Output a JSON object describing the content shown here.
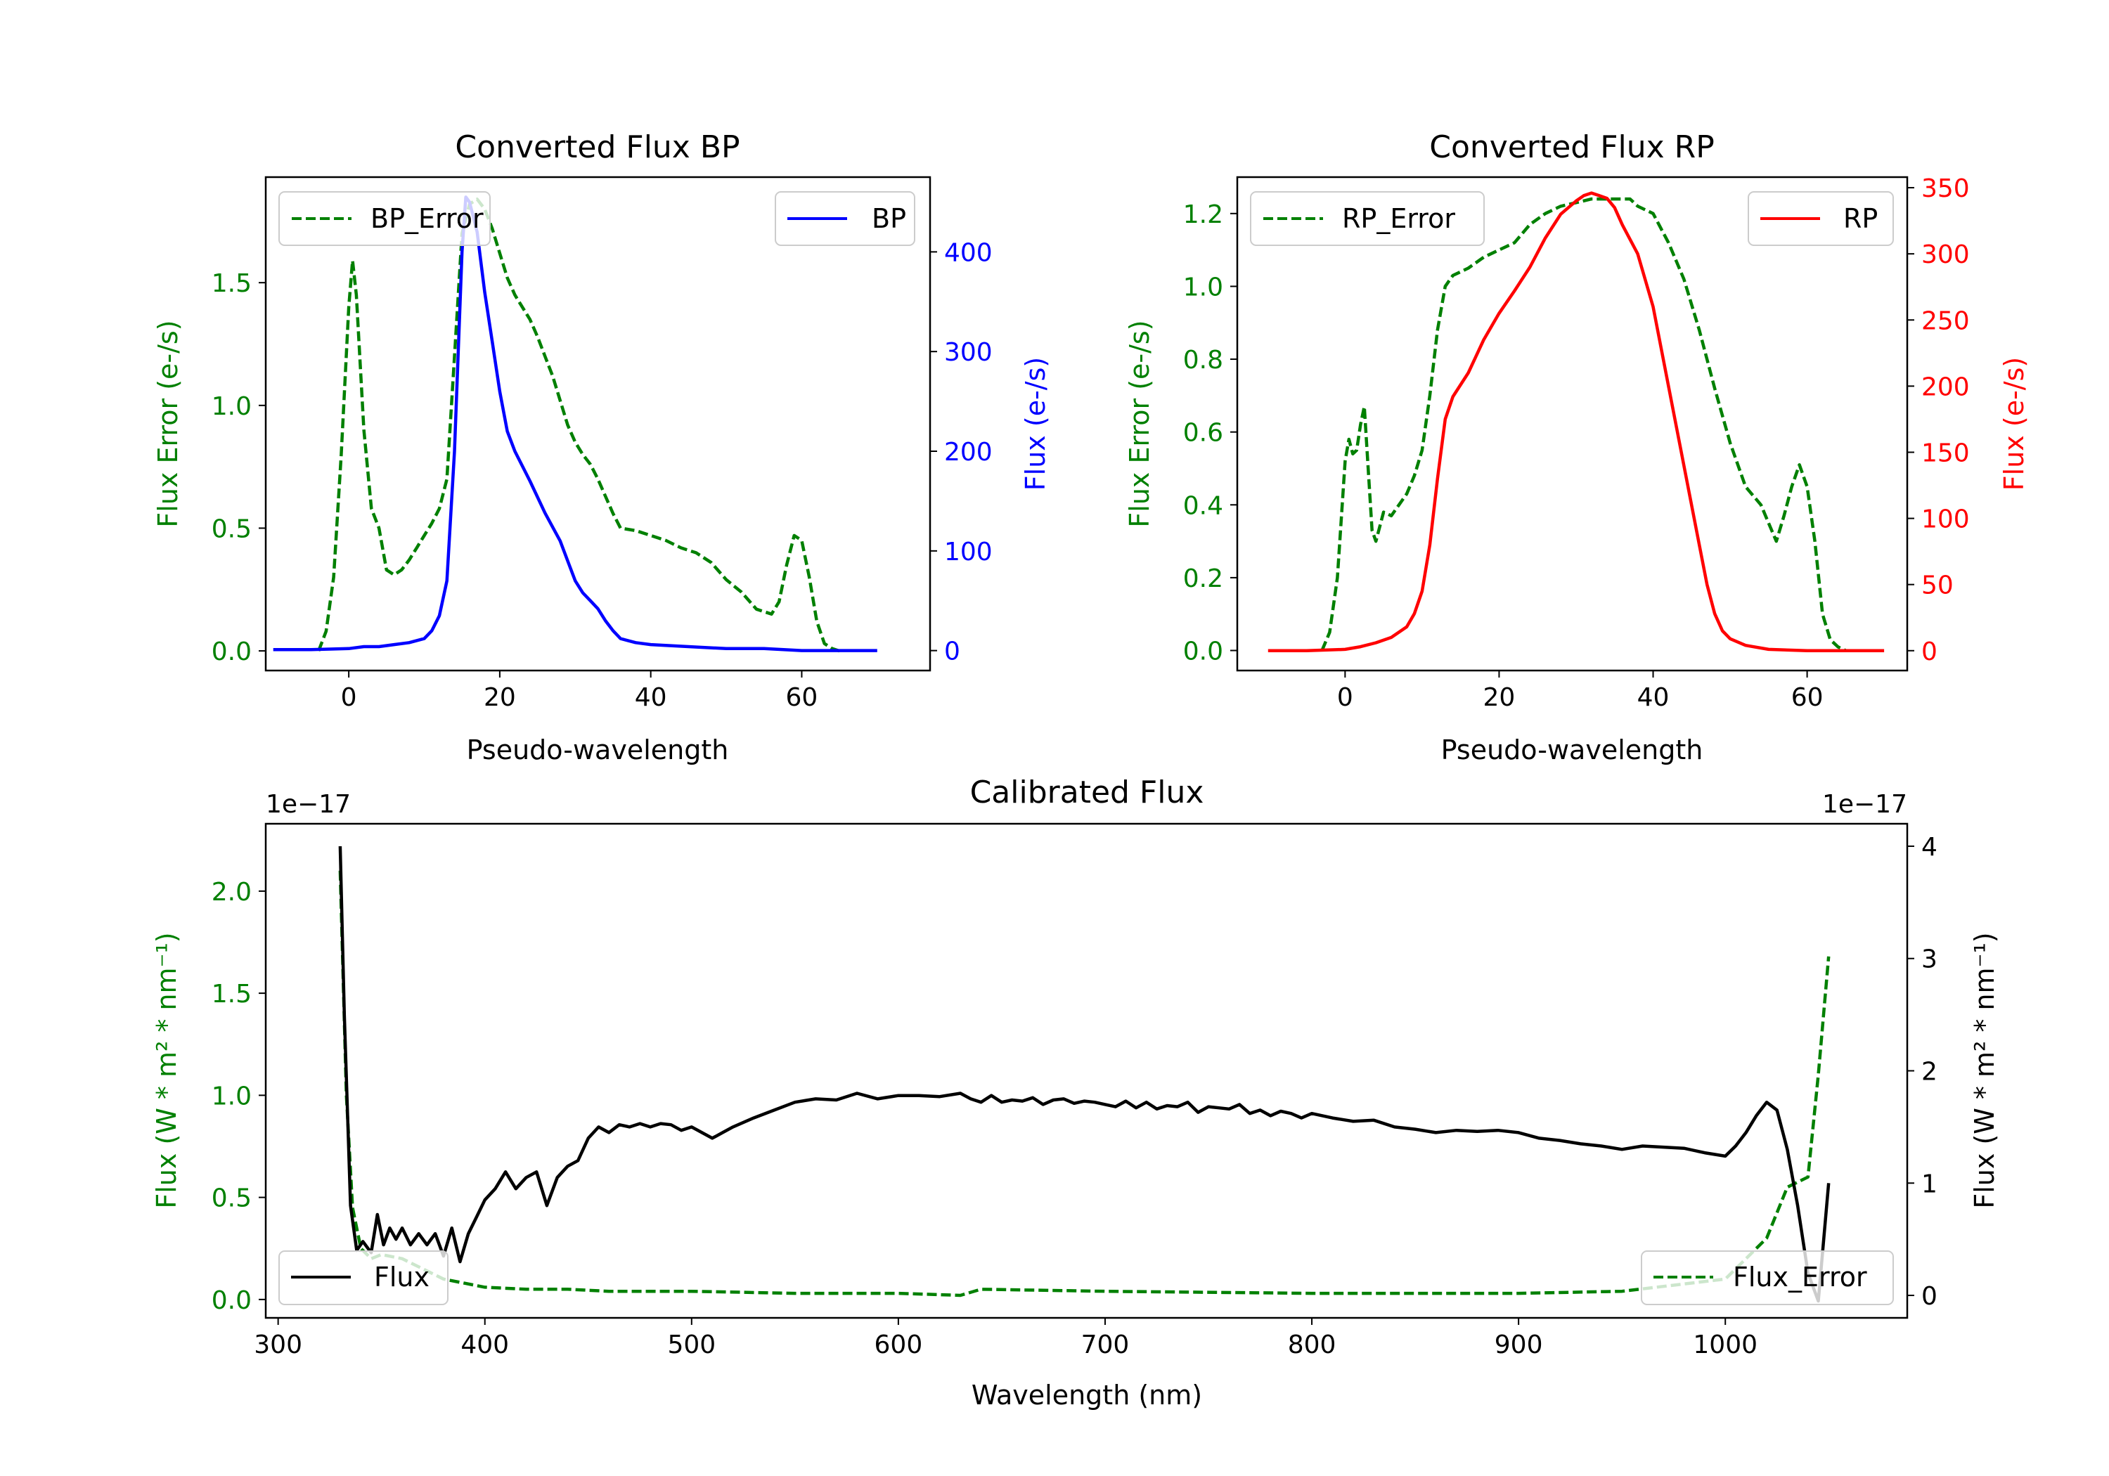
{
  "chart_data": [
    {
      "type": "line",
      "title": "Converted Flux BP",
      "xlabel": "Pseudo-wavelength",
      "ylabel_left": "Flux Error (e-/s)",
      "ylabel_right": "Flux (e-/s)",
      "xlim": [
        -11,
        77
      ],
      "ylim_left": [
        -0.08,
        1.93
      ],
      "ylim_right": [
        -20,
        475
      ],
      "xticks": [
        "0",
        "20",
        "40",
        "60"
      ],
      "yticks_left": [
        "0.0",
        "0.5",
        "1.0",
        "1.5"
      ],
      "yticks_right": [
        "0",
        "100",
        "200",
        "300",
        "400"
      ],
      "left_color": "#008000",
      "right_color": "#0000ff",
      "legend_left": "upper-left",
      "legend_right": "upper-right",
      "series": [
        {
          "name": "BP_Error",
          "axis": "left",
          "style": "dashed",
          "color": "#008000",
          "x": [
            -4,
            -3,
            -2,
            -1,
            0,
            0.5,
            1,
            2,
            3,
            4,
            5,
            6,
            7,
            8,
            9,
            10,
            11,
            12,
            13,
            14,
            15,
            16,
            17,
            18,
            19,
            20,
            21,
            22,
            23,
            24,
            25,
            26,
            27,
            28,
            29,
            30,
            31,
            32,
            33,
            34,
            35,
            36,
            38,
            40,
            42,
            44,
            46,
            48,
            50,
            52,
            54,
            56,
            57,
            58,
            59,
            60,
            61,
            62,
            63,
            64,
            65
          ],
          "y": [
            0.0,
            0.08,
            0.3,
            0.8,
            1.4,
            1.59,
            1.45,
            0.9,
            0.58,
            0.5,
            0.33,
            0.31,
            0.33,
            0.37,
            0.42,
            0.47,
            0.52,
            0.58,
            0.7,
            1.2,
            1.7,
            1.82,
            1.84,
            1.8,
            1.72,
            1.62,
            1.52,
            1.45,
            1.4,
            1.35,
            1.28,
            1.2,
            1.12,
            1.02,
            0.92,
            0.85,
            0.8,
            0.76,
            0.7,
            0.63,
            0.56,
            0.5,
            0.49,
            0.47,
            0.45,
            0.42,
            0.4,
            0.36,
            0.29,
            0.24,
            0.17,
            0.15,
            0.2,
            0.35,
            0.47,
            0.45,
            0.3,
            0.12,
            0.03,
            0.01,
            0.0
          ]
        },
        {
          "name": "BP",
          "axis": "right",
          "style": "solid",
          "color": "#0000ff",
          "x": [
            -10,
            -5,
            0,
            2,
            4,
            6,
            8,
            10,
            11,
            12,
            13,
            14,
            15,
            15.5,
            16,
            17,
            18,
            19,
            20,
            21,
            22,
            24,
            26,
            28,
            29,
            30,
            31,
            32,
            33,
            34,
            35,
            36,
            38,
            40,
            45,
            50,
            55,
            60,
            65,
            70
          ],
          "y": [
            1,
            1,
            2,
            4,
            4,
            6,
            8,
            12,
            20,
            35,
            70,
            200,
            400,
            455,
            450,
            420,
            360,
            310,
            260,
            220,
            200,
            170,
            138,
            110,
            90,
            70,
            58,
            50,
            42,
            30,
            20,
            12,
            8,
            6,
            4,
            2,
            2,
            0,
            0,
            0
          ]
        }
      ]
    },
    {
      "type": "line",
      "title": "Converted Flux RP",
      "xlabel": "Pseudo-wavelength",
      "ylabel_left": "Flux Error (e-/s)",
      "ylabel_right": "Flux (e-/s)",
      "xlim": [
        -14,
        73
      ],
      "ylim_left": [
        -0.055,
        1.3
      ],
      "ylim_right": [
        -15,
        358
      ],
      "xticks": [
        "0",
        "20",
        "40",
        "60"
      ],
      "yticks_left": [
        "0.0",
        "0.2",
        "0.4",
        "0.6",
        "0.8",
        "1.0",
        "1.2"
      ],
      "yticks_right": [
        "0",
        "50",
        "100",
        "150",
        "200",
        "250",
        "300",
        "350"
      ],
      "left_color": "#008000",
      "right_color": "#ff0000",
      "legend_left": "upper-left",
      "legend_right": "upper-right",
      "series": [
        {
          "name": "RP_Error",
          "axis": "left",
          "style": "dashed",
          "color": "#008000",
          "x": [
            -3,
            -2,
            -1,
            0,
            0.5,
            1,
            1.5,
            2,
            2.5,
            3,
            3.5,
            4,
            5,
            6,
            7,
            8,
            9,
            10,
            11,
            12,
            13,
            14,
            15,
            16,
            18,
            20,
            22,
            24,
            26,
            28,
            30,
            32,
            34,
            36,
            37,
            38,
            40,
            42,
            44,
            46,
            48,
            50,
            52,
            54,
            55,
            56,
            57,
            58,
            59,
            60,
            61,
            62,
            63,
            64,
            65
          ],
          "y": [
            0.0,
            0.05,
            0.2,
            0.52,
            0.58,
            0.54,
            0.55,
            0.62,
            0.67,
            0.5,
            0.33,
            0.3,
            0.38,
            0.37,
            0.4,
            0.43,
            0.48,
            0.55,
            0.7,
            0.88,
            1.0,
            1.03,
            1.04,
            1.05,
            1.08,
            1.1,
            1.12,
            1.17,
            1.2,
            1.22,
            1.23,
            1.24,
            1.24,
            1.24,
            1.24,
            1.22,
            1.2,
            1.12,
            1.02,
            0.88,
            0.72,
            0.57,
            0.45,
            0.4,
            0.35,
            0.3,
            0.37,
            0.45,
            0.51,
            0.45,
            0.3,
            0.1,
            0.03,
            0.01,
            0.0
          ]
        },
        {
          "name": "RP",
          "axis": "right",
          "style": "solid",
          "color": "#ff0000",
          "x": [
            -10,
            -5,
            0,
            2,
            4,
            6,
            8,
            9,
            10,
            11,
            12,
            13,
            14,
            16,
            18,
            20,
            22,
            24,
            26,
            28,
            30,
            31,
            32,
            33,
            34,
            35,
            36,
            38,
            40,
            42,
            44,
            46,
            47,
            48,
            49,
            50,
            52,
            55,
            60,
            65,
            70
          ],
          "y": [
            0,
            0,
            1,
            3,
            6,
            10,
            18,
            28,
            45,
            80,
            130,
            175,
            192,
            210,
            235,
            255,
            272,
            290,
            312,
            330,
            340,
            344,
            346,
            344,
            342,
            335,
            322,
            300,
            260,
            200,
            140,
            80,
            50,
            28,
            15,
            9,
            4,
            1,
            0,
            0,
            0
          ]
        }
      ]
    },
    {
      "type": "line",
      "title": "Calibrated Flux",
      "xlabel": "Wavelength (nm)",
      "ylabel_left": "Flux (W * m² * nm⁻¹)",
      "ylabel_right": "Flux (W * m² * nm⁻¹)",
      "offset_left": "1e−17",
      "offset_right": "1e−17",
      "xlim": [
        294,
        1088
      ],
      "ylim_left": [
        -0.09,
        2.33
      ],
      "ylim_right": [
        -0.2,
        4.2
      ],
      "xticks": [
        "300",
        "400",
        "500",
        "600",
        "700",
        "800",
        "900",
        "1000"
      ],
      "yticks_left": [
        "0.0",
        "0.5",
        "1.0",
        "1.5",
        "2.0"
      ],
      "yticks_right": [
        "0",
        "1",
        "2",
        "3",
        "4"
      ],
      "left_color": "#008000",
      "right_color": "#000000",
      "legend_left": "lower-left",
      "legend_right": "lower-right",
      "series": [
        {
          "name": "Flux_Error",
          "axis": "left",
          "style": "dashed",
          "color": "#008000",
          "x": [
            330,
            333,
            336,
            340,
            345,
            350,
            360,
            370,
            380,
            390,
            400,
            420,
            440,
            460,
            500,
            550,
            600,
            630,
            640,
            700,
            800,
            900,
            950,
            1000,
            1010,
            1020,
            1030,
            1040,
            1045,
            1050
          ],
          "y": [
            2.1,
            1.0,
            0.45,
            0.25,
            0.2,
            0.22,
            0.2,
            0.15,
            0.1,
            0.08,
            0.06,
            0.05,
            0.05,
            0.04,
            0.04,
            0.03,
            0.03,
            0.02,
            0.05,
            0.04,
            0.03,
            0.03,
            0.04,
            0.1,
            0.2,
            0.3,
            0.55,
            0.6,
            1.1,
            1.68
          ]
        },
        {
          "name": "Flux",
          "axis": "right",
          "style": "solid",
          "color": "#000000",
          "x": [
            330,
            332,
            335,
            338,
            341,
            345,
            348,
            351,
            354,
            357,
            360,
            364,
            368,
            372,
            376,
            380,
            384,
            388,
            392,
            396,
            400,
            405,
            410,
            415,
            420,
            425,
            430,
            435,
            440,
            445,
            450,
            455,
            460,
            465,
            470,
            475,
            480,
            485,
            490,
            495,
            500,
            505,
            510,
            515,
            520,
            530,
            540,
            550,
            560,
            570,
            580,
            590,
            600,
            610,
            620,
            630,
            635,
            640,
            645,
            650,
            655,
            660,
            665,
            670,
            675,
            680,
            685,
            690,
            695,
            700,
            705,
            710,
            715,
            720,
            725,
            730,
            735,
            740,
            745,
            750,
            755,
            760,
            765,
            770,
            775,
            780,
            785,
            790,
            795,
            800,
            810,
            820,
            830,
            840,
            850,
            860,
            870,
            880,
            890,
            900,
            910,
            920,
            930,
            940,
            950,
            960,
            970,
            980,
            990,
            1000,
            1005,
            1010,
            1015,
            1020,
            1025,
            1030,
            1035,
            1040,
            1045,
            1050
          ],
          "y": [
            4.0,
            2.5,
            0.8,
            0.4,
            0.48,
            0.38,
            0.72,
            0.45,
            0.6,
            0.5,
            0.6,
            0.45,
            0.55,
            0.45,
            0.55,
            0.35,
            0.6,
            0.3,
            0.55,
            0.7,
            0.85,
            0.95,
            1.1,
            0.95,
            1.05,
            1.1,
            0.8,
            1.05,
            1.15,
            1.2,
            1.4,
            1.5,
            1.45,
            1.52,
            1.5,
            1.53,
            1.5,
            1.53,
            1.52,
            1.47,
            1.5,
            1.45,
            1.4,
            1.45,
            1.5,
            1.58,
            1.65,
            1.72,
            1.75,
            1.74,
            1.8,
            1.75,
            1.78,
            1.78,
            1.77,
            1.8,
            1.75,
            1.72,
            1.78,
            1.72,
            1.74,
            1.73,
            1.76,
            1.7,
            1.74,
            1.75,
            1.71,
            1.73,
            1.72,
            1.7,
            1.68,
            1.73,
            1.67,
            1.72,
            1.66,
            1.69,
            1.68,
            1.72,
            1.63,
            1.68,
            1.67,
            1.66,
            1.7,
            1.62,
            1.65,
            1.6,
            1.64,
            1.62,
            1.58,
            1.62,
            1.58,
            1.55,
            1.56,
            1.5,
            1.48,
            1.45,
            1.47,
            1.46,
            1.47,
            1.45,
            1.4,
            1.38,
            1.35,
            1.33,
            1.3,
            1.33,
            1.32,
            1.31,
            1.27,
            1.24,
            1.33,
            1.45,
            1.6,
            1.72,
            1.65,
            1.3,
            0.8,
            0.2,
            -0.05,
            1.0
          ]
        }
      ]
    }
  ]
}
